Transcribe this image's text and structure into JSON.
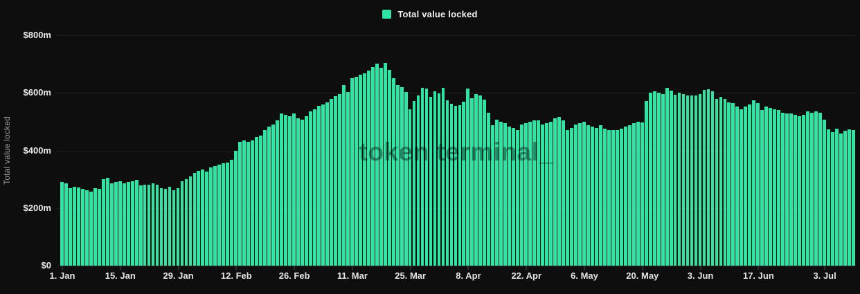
{
  "page": {
    "background": "#0e0e0e"
  },
  "legend": {
    "label": "Total value locked",
    "swatch_color": "#2ee5a6"
  },
  "watermark": {
    "text": "token terminal_"
  },
  "y_axis": {
    "title": "Total value locked"
  },
  "chart_data": {
    "type": "bar",
    "title": "",
    "series_name": "Total value locked",
    "unit": "USD millions",
    "bar_color": "#2ee5a6",
    "ylabel": "Total value locked",
    "ylim": [
      0,
      800
    ],
    "grid": "horizontal",
    "legend_position": "top-center",
    "y_tick_labels": [
      "$800m",
      "$600m",
      "$400m",
      "$200m",
      "$0"
    ],
    "y_tick_values": [
      800,
      600,
      400,
      200,
      0
    ],
    "x_frequency": "daily",
    "x_start": "1. Jan",
    "x_tick_labels": [
      "1. Jan",
      "15. Jan",
      "29. Jan",
      "12. Feb",
      "26. Feb",
      "11. Mar",
      "25. Mar",
      "8. Apr",
      "22. Apr",
      "6. May",
      "20. May",
      "3. Jun",
      "17. Jun",
      "3. Jul"
    ],
    "x_tick_days": [
      1,
      15,
      29,
      43,
      57,
      71,
      85,
      99,
      113,
      127,
      141,
      155,
      169,
      185
    ],
    "values": [
      290,
      287,
      268,
      275,
      271,
      266,
      262,
      258,
      270,
      266,
      300,
      305,
      287,
      290,
      294,
      287,
      290,
      293,
      297,
      279,
      281,
      282,
      285,
      281,
      270,
      266,
      274,
      262,
      270,
      293,
      301,
      310,
      322,
      330,
      334,
      326,
      342,
      346,
      351,
      355,
      359,
      367,
      398,
      430,
      435,
      431,
      436,
      447,
      452,
      471,
      483,
      490,
      504,
      528,
      524,
      520,
      528,
      512,
      508,
      520,
      536,
      544,
      556,
      560,
      568,
      580,
      589,
      596,
      628,
      604,
      650,
      657,
      664,
      669,
      677,
      689,
      701,
      686,
      705,
      681,
      652,
      628,
      621,
      604,
      544,
      572,
      590,
      618,
      614,
      586,
      606,
      598,
      618,
      574,
      562,
      554,
      558,
      570,
      614,
      582,
      596,
      592,
      576,
      532,
      487,
      508,
      500,
      495,
      483,
      479,
      471,
      491,
      495,
      500,
      504,
      504,
      491,
      495,
      500,
      512,
      516,
      504,
      471,
      479,
      491,
      495,
      500,
      487,
      483,
      479,
      487,
      475,
      471,
      470,
      471,
      475,
      483,
      487,
      495,
      500,
      497,
      572,
      600,
      605,
      600,
      596,
      618,
      608,
      594,
      600,
      596,
      591,
      591,
      590,
      596,
      610,
      613,
      605,
      580,
      586,
      580,
      568,
      564,
      552,
      544,
      552,
      560,
      575,
      564,
      540,
      552,
      548,
      544,
      540,
      532,
      528,
      528,
      524,
      520,
      524,
      536,
      532,
      536,
      531,
      507,
      473,
      464,
      476,
      459,
      468,
      473,
      470
    ]
  }
}
